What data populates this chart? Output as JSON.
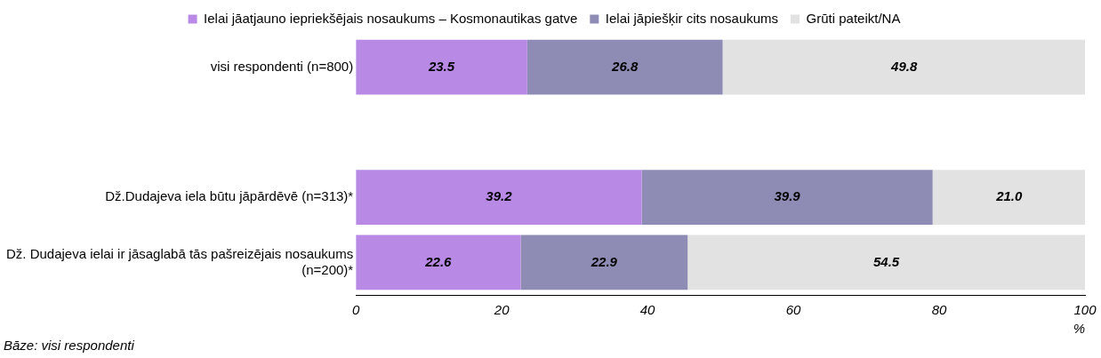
{
  "chart_data": {
    "type": "bar",
    "orientation": "horizontal",
    "stacked": true,
    "legend": "top",
    "grid": false,
    "categories": [
      "visi respondenti (n=800)",
      null,
      "Dž.Dudajeva iela būtu jāpārdēvē (n=313)*",
      "Dž. Dudajeva ielai ir jāsaglabā tās pašreizējais nosaukums (n=200)*"
    ],
    "series": [
      {
        "name": "Ielai jāatjauno iepriekšējais nosaukums – Kosmonautikas gatve",
        "color": "#b88ae6",
        "values": [
          23.5,
          null,
          39.2,
          22.6
        ],
        "value_labels": [
          "23.5",
          null,
          "39.2",
          "22.6"
        ]
      },
      {
        "name": "Ielai jāpiešķir cits nosaukums",
        "color": "#8e8cb4",
        "values": [
          26.8,
          null,
          39.9,
          22.9
        ],
        "value_labels": [
          "26.8",
          null,
          "39.9",
          "22.9"
        ]
      },
      {
        "name": "Grūti pateikt/NA",
        "color": "#e2e2e2",
        "values": [
          49.8,
          null,
          21.0,
          54.5
        ],
        "value_labels": [
          "49.8",
          null,
          "21.0",
          "54.5"
        ]
      }
    ],
    "xlim": [
      0,
      100
    ],
    "xticks": [
      0,
      20,
      40,
      60,
      80,
      100
    ],
    "xlabel": "%",
    "annotations": [
      "Bāze: visi respondenti"
    ]
  }
}
